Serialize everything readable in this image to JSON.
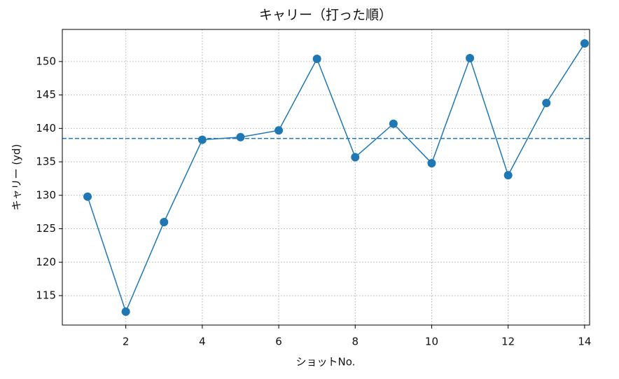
{
  "chart_data": {
    "type": "line",
    "title": "キャリー（打った順）",
    "x_label": "ショットNo.",
    "y_label": "キャリー (yd)",
    "x": [
      1,
      2,
      3,
      4,
      5,
      6,
      7,
      8,
      9,
      10,
      11,
      12,
      13,
      14
    ],
    "series": [
      {
        "color": "#1f77b4",
        "values": [
          129.8,
          112.6,
          126.0,
          138.3,
          138.7,
          139.7,
          150.4,
          135.7,
          140.7,
          134.8,
          150.5,
          133.0,
          143.8,
          152.7
        ]
      }
    ],
    "reference_line": {
      "value": 138.5,
      "color": "#1f77b4",
      "style": "dashed"
    },
    "xlim": [
      0.34,
      14.13
    ],
    "ylim": [
      110.6,
      154.8
    ],
    "xticks": [
      2,
      4,
      6,
      8,
      10,
      12,
      14
    ],
    "yticks": [
      115,
      120,
      125,
      130,
      135,
      140,
      145,
      150
    ],
    "grid": true
  }
}
